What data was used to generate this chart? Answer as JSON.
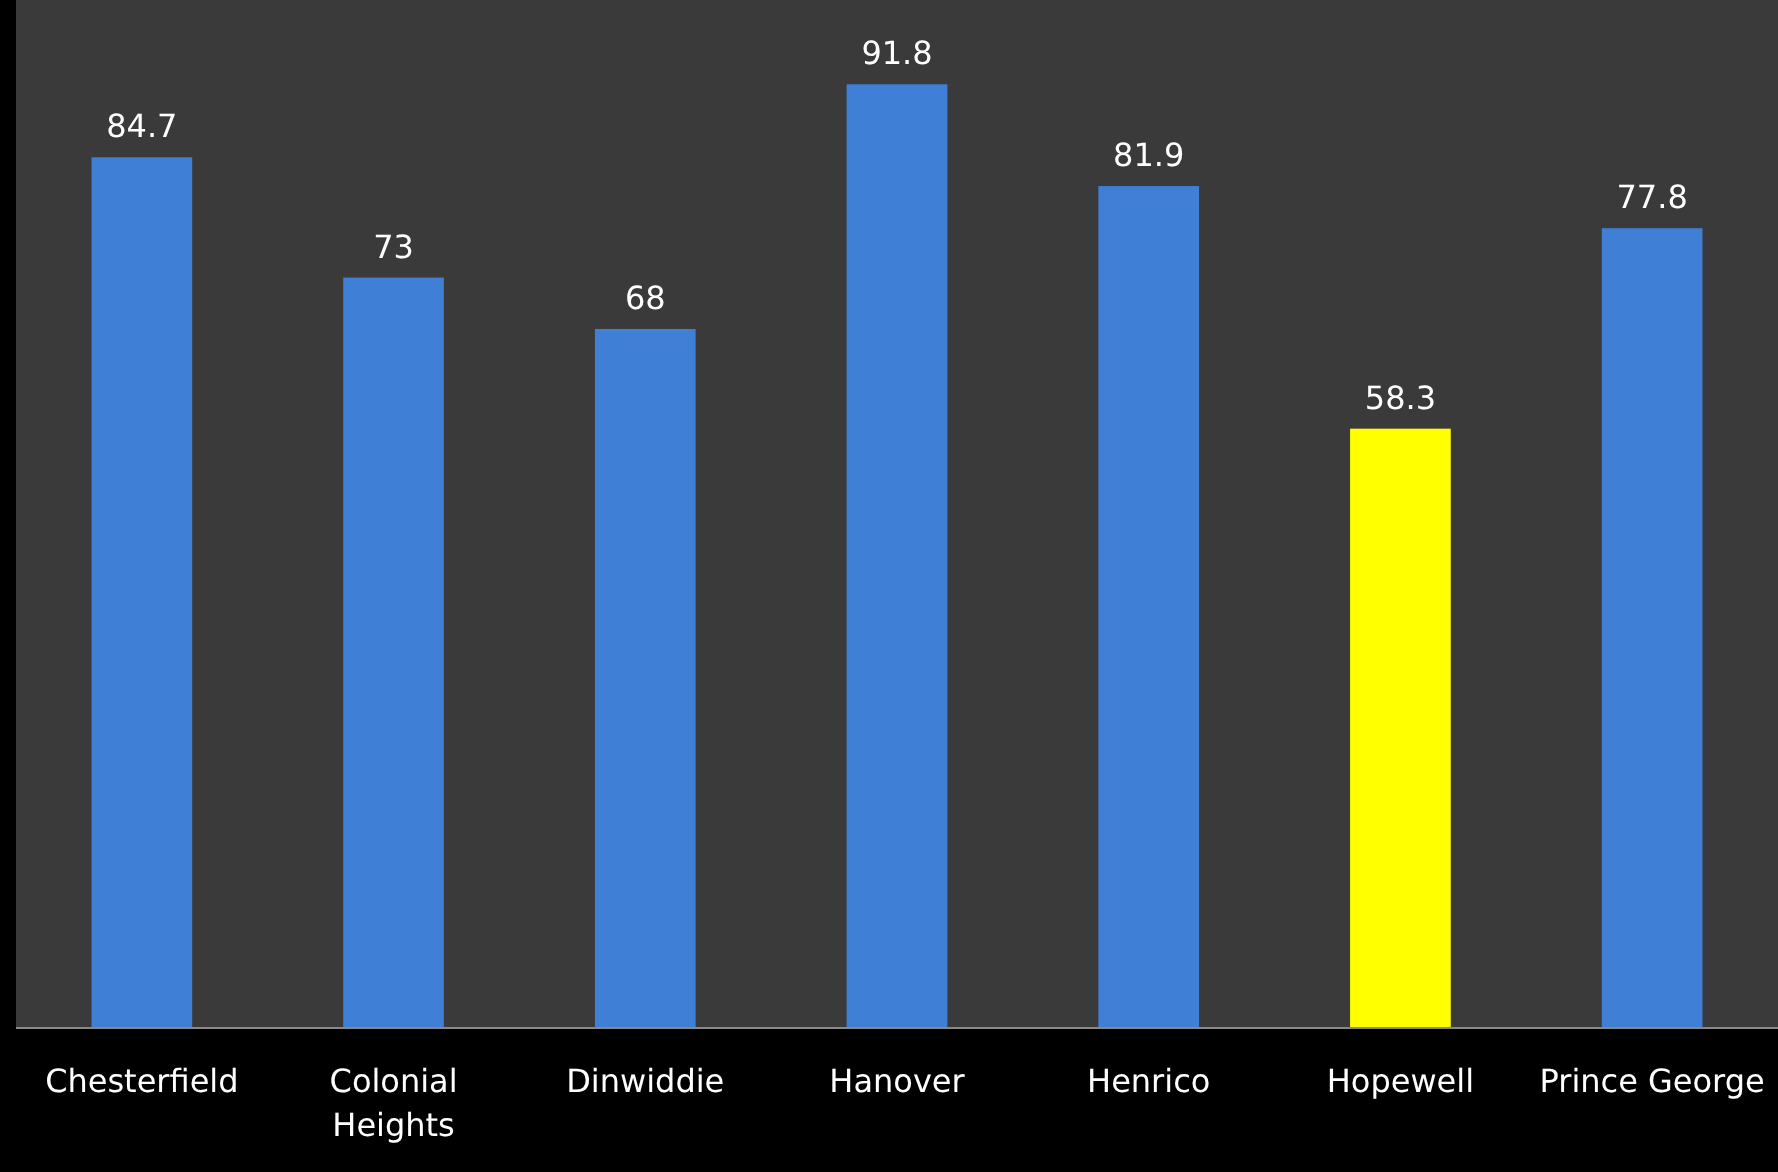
{
  "chart_data": {
    "type": "bar",
    "categories": [
      "Chesterfield",
      "Colonial Heights",
      "Dinwiddie",
      "Hanover",
      "Henrico",
      "Hopewell",
      "Prince George"
    ],
    "values": [
      84.7,
      73,
      68,
      91.8,
      81.9,
      58.3,
      77.8
    ],
    "colors": [
      "#3f7fd6",
      "#3f7fd6",
      "#3f7fd6",
      "#3f7fd6",
      "#3f7fd6",
      "#ffff00",
      "#3f7fd6"
    ],
    "ylim": [
      0,
      100
    ],
    "data_labels": true
  }
}
